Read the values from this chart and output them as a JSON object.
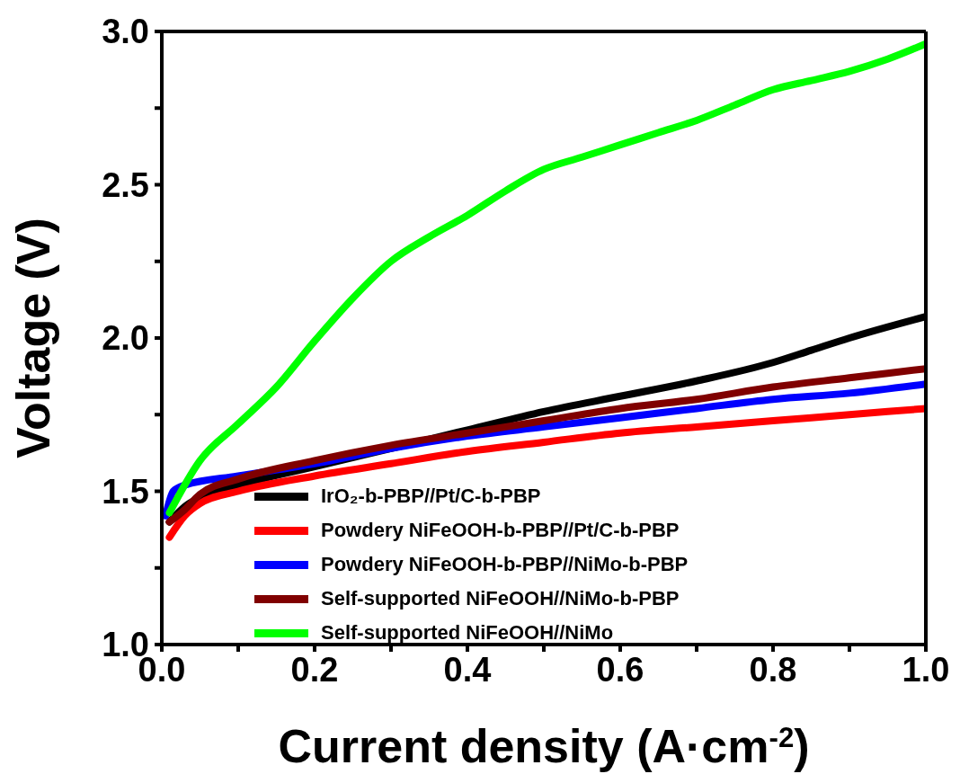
{
  "chart_data": {
    "type": "line",
    "xlabel": "Current density (A·cm$^{-2}$)",
    "ylabel": "Voltage (V)",
    "xlim": [
      0,
      1
    ],
    "ylim": [
      1,
      3
    ],
    "xticks": [
      {
        "value": 0,
        "label": "0.0"
      },
      {
        "value": 0.1,
        "label": null
      },
      0.2,
      {
        "value": 0.3,
        "label": null
      },
      0.4,
      {
        "value": 0.5,
        "label": null
      },
      0.6,
      {
        "value": 0.7,
        "label": null
      },
      0.8,
      {
        "value": 0.9,
        "label": null
      },
      {
        "value": 1,
        "label": "1.0"
      }
    ],
    "yticks": [
      {
        "value": 1,
        "label": "1.0"
      },
      {
        "value": 1.25,
        "label": null
      },
      1.5,
      {
        "value": 1.75,
        "label": null
      },
      {
        "value": 2,
        "label": "2.0"
      },
      {
        "value": 2.25,
        "label": null
      },
      2.5,
      {
        "value": 2.75,
        "label": null
      },
      {
        "value": 3,
        "label": "3.0"
      }
    ],
    "legend": "bottom left",
    "marker": "none",
    "line_style": "solid",
    "series": [
      {
        "name": "IrO₂-b-PBP//Pt/C-b-PBP",
        "color": "#000000",
        "x": [
          0.01,
          0.03,
          0.05,
          0.1,
          0.2,
          0.3,
          0.4,
          0.5,
          0.6,
          0.7,
          0.8,
          0.85,
          0.9,
          1.0
        ],
        "values": [
          1.4,
          1.45,
          1.48,
          1.52,
          1.58,
          1.64,
          1.7,
          1.76,
          1.81,
          1.86,
          1.92,
          1.96,
          2.0,
          2.07
        ]
      },
      {
        "name": "Powdery NiFeOOH-b-PBP//Pt/C-b-PBP",
        "color": "#ff0000",
        "x": [
          0.01,
          0.03,
          0.05,
          0.1,
          0.2,
          0.3,
          0.4,
          0.5,
          0.6,
          0.7,
          0.8,
          0.9,
          1.0
        ],
        "values": [
          1.35,
          1.42,
          1.46,
          1.5,
          1.55,
          1.59,
          1.63,
          1.66,
          1.69,
          1.71,
          1.73,
          1.75,
          1.77
        ]
      },
      {
        "name": "Powdery NiFeOOH-b-PBP//NiMo-b-PBP",
        "color": "#0000ff",
        "x": [
          0.005,
          0.015,
          0.03,
          0.1,
          0.2,
          0.3,
          0.4,
          0.5,
          0.6,
          0.7,
          0.8,
          0.9,
          1.0
        ],
        "values": [
          1.42,
          1.5,
          1.52,
          1.55,
          1.59,
          1.64,
          1.68,
          1.71,
          1.74,
          1.77,
          1.8,
          1.82,
          1.85
        ]
      },
      {
        "name": "Self-supported NiFeOOH//NiMo-b-PBP",
        "color": "#800000",
        "x": [
          0.01,
          0.03,
          0.05,
          0.1,
          0.2,
          0.3,
          0.4,
          0.5,
          0.6,
          0.7,
          0.8,
          0.9,
          1.0
        ],
        "values": [
          1.4,
          1.44,
          1.49,
          1.54,
          1.6,
          1.65,
          1.69,
          1.73,
          1.77,
          1.8,
          1.84,
          1.87,
          1.9
        ]
      },
      {
        "name": "Self-supported NiFeOOH//NiMo",
        "color": "#00ff00",
        "x": [
          0.01,
          0.05,
          0.1,
          0.15,
          0.2,
          0.25,
          0.3,
          0.35,
          0.4,
          0.45,
          0.5,
          0.55,
          0.6,
          0.65,
          0.7,
          0.75,
          0.8,
          0.85,
          0.9,
          0.95,
          1.0
        ],
        "values": [
          1.43,
          1.6,
          1.72,
          1.84,
          1.99,
          2.13,
          2.25,
          2.33,
          2.4,
          2.48,
          2.55,
          2.59,
          2.63,
          2.67,
          2.71,
          2.76,
          2.81,
          2.84,
          2.87,
          2.91,
          2.96
        ]
      }
    ]
  }
}
